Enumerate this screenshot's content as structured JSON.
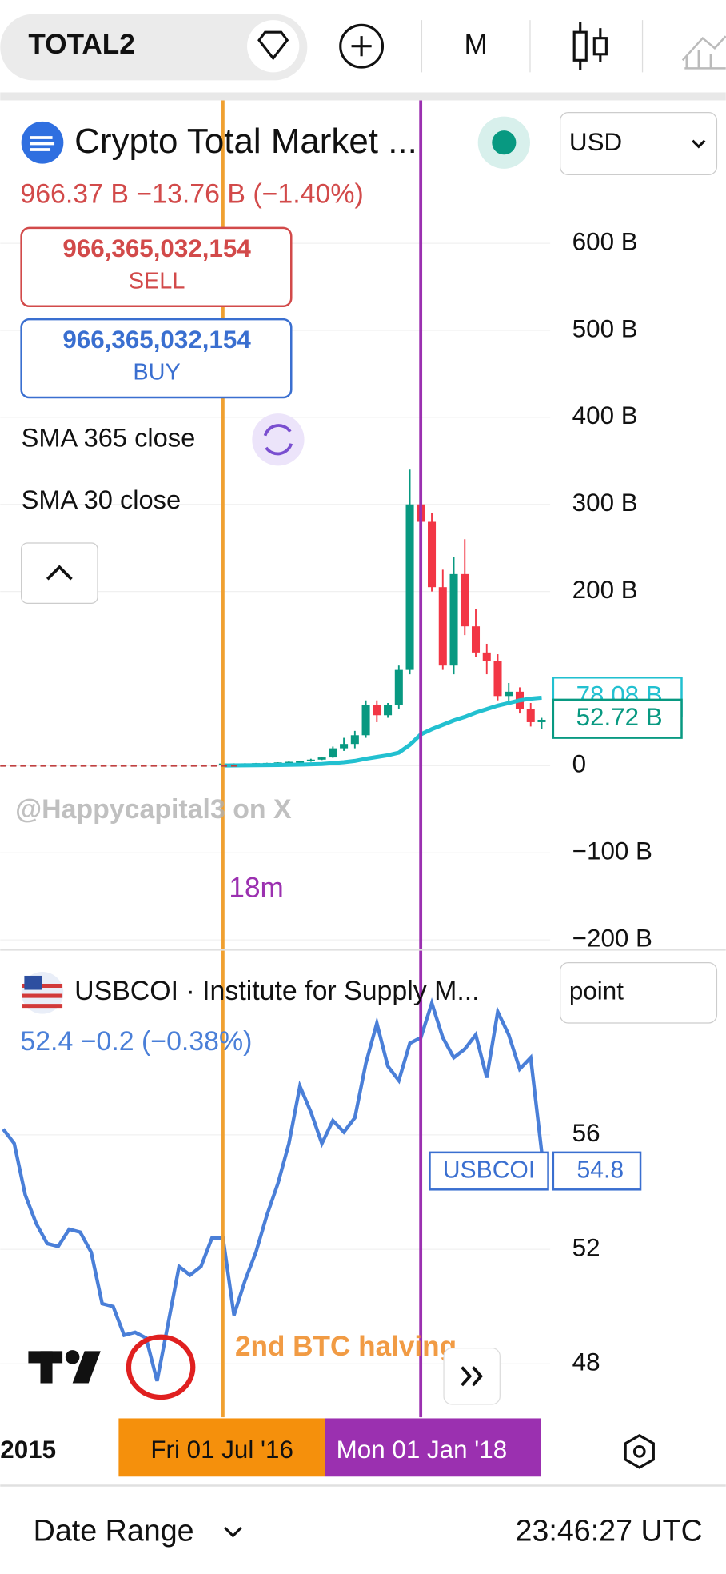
{
  "toolbar": {
    "symbol": "TOTAL2",
    "interval": "M"
  },
  "legend": {
    "title": "Crypto Total Market ...",
    "currency": "USD",
    "quote": "966.37 B  −13.76 B (−1.40%)",
    "sell_price": "966,365,032,154",
    "sell": "SELL",
    "buy_price": "966,365,032,154",
    "buy": "BUY",
    "indicator1": "SMA 365 close",
    "indicator2": "SMA 30 close"
  },
  "watermark": "@Happycapital3 on X",
  "range_note": "18m",
  "annotation": "2nd  BTC halving",
  "lower_legend": {
    "title": "USBCOI · Institute for Supply M...",
    "quote": "52.4  −0.2 (−0.38%)",
    "unit": "point",
    "tag": "USBCOI",
    "tag_value": "54.8"
  },
  "x_axis_labels": [
    "2015",
    "Fri 01 Jul '16",
    "Mon 01 Jan '18"
  ],
  "footer": {
    "range": "Date Range",
    "clock": "23:46:27 UTC"
  },
  "chart_data": [
    {
      "type": "candlestick",
      "up_color": "#089981",
      "down_color": "#f23645",
      "open": [
        2.4,
        2.5,
        2.6,
        2.7,
        3,
        3.2,
        3.8,
        4.5,
        5.2,
        7,
        9.5,
        20,
        25,
        35,
        70,
        58,
        70,
        110,
        300,
        280,
        205,
        115,
        220,
        160,
        130,
        120,
        80,
        85,
        65,
        50
      ],
      "high": [
        2.6,
        2.8,
        2.9,
        3.2,
        3.4,
        4,
        5,
        5.5,
        8,
        10,
        22,
        32,
        40,
        75,
        75,
        72,
        115,
        340,
        320,
        290,
        225,
        240,
        260,
        180,
        140,
        128,
        95,
        90,
        72,
        55
      ],
      "low": [
        2.2,
        2.3,
        2.5,
        2.6,
        2.8,
        3,
        3.2,
        4,
        4.5,
        6.5,
        9,
        17,
        20,
        32,
        50,
        55,
        65,
        105,
        250,
        200,
        110,
        105,
        150,
        125,
        105,
        75,
        70,
        60,
        45,
        42
      ],
      "close": [
        2.5,
        2.6,
        2.7,
        3,
        3.2,
        3.8,
        4.5,
        5.2,
        7,
        9.5,
        20,
        25,
        35,
        70,
        58,
        70,
        110,
        300,
        280,
        205,
        115,
        220,
        160,
        130,
        120,
        80,
        85,
        65,
        50,
        52.72
      ],
      "sma": {
        "name": "SMA 365 close",
        "color": "#22c0d0",
        "values": [
          0.3,
          0.4,
          0.5,
          0.6,
          0.7,
          0.9,
          1.1,
          1.3,
          1.6,
          2,
          3,
          4,
          5.5,
          8,
          10,
          12,
          15,
          24,
          36,
          42,
          47,
          52,
          56,
          61,
          65,
          69,
          72,
          75,
          77,
          78.08
        ]
      },
      "sma_label": "78.08 B",
      "close_label": "52.72 B",
      "ylim": [
        -210,
        764
      ],
      "yticks": [
        {
          "value": 600,
          "label": "600 B"
        },
        {
          "value": 500,
          "label": "500 B"
        },
        {
          "value": 400,
          "label": "400 B"
        },
        {
          "value": 300,
          "label": "300 B"
        },
        {
          "value": 200,
          "label": "200 B"
        },
        0,
        {
          "value": -100,
          "label": "−100 B"
        },
        {
          "value": -200,
          "label": "−200 B"
        }
      ]
    },
    {
      "type": "line",
      "series": [
        {
          "name": "USBCOI",
          "color": "#4a7fd8",
          "values": [
            56.2,
            55.7,
            53.9,
            52.9,
            52.2,
            52.1,
            52.7,
            52.6,
            51.9,
            50.1,
            50.0,
            49.0,
            49.1,
            48.9,
            47.4,
            49.4,
            51.4,
            51.1,
            51.4,
            52.4,
            52.4,
            49.7,
            50.9,
            51.9,
            53.2,
            54.3,
            55.7,
            57.7,
            56.8,
            55.7,
            56.5,
            56.1,
            56.6,
            58.5,
            59.9,
            58.4,
            57.9,
            59.2,
            59.4,
            60.6,
            59.4,
            58.7,
            59.0,
            59.5,
            58.0,
            60.3,
            59.5,
            58.3,
            58.7,
            55.4
          ]
        }
      ],
      "ylim": [
        46.2,
        62.4
      ],
      "yticks": [
        48,
        52,
        56
      ]
    }
  ]
}
